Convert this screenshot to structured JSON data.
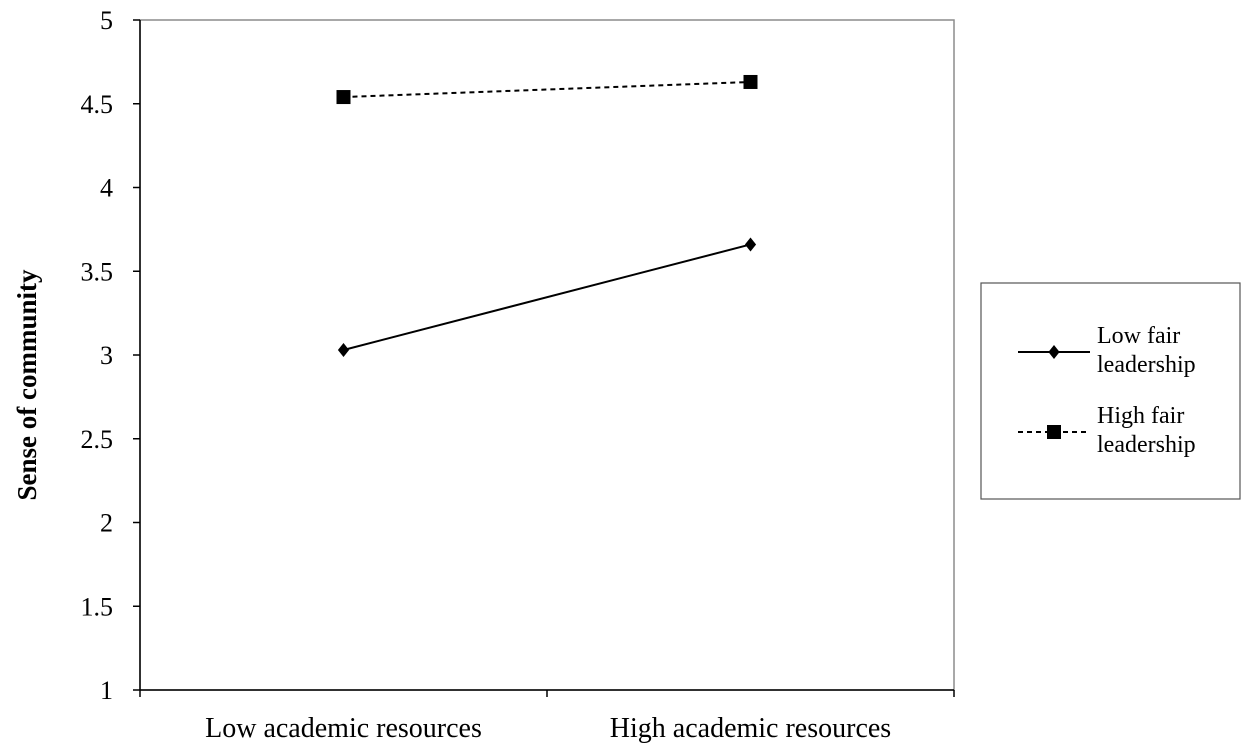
{
  "chart_data": {
    "type": "line",
    "title": "",
    "xlabel": "",
    "ylabel": "Sense of community",
    "categories": [
      "Low academic resources",
      "High academic resources"
    ],
    "ylim": [
      1,
      5
    ],
    "yticks": [
      "1",
      "1.5",
      "2",
      "2.5",
      "3",
      "3.5",
      "4",
      "4.5",
      "5"
    ],
    "grid": false,
    "legend_position": "right",
    "series": [
      {
        "name": "Low fair leadership",
        "legend_lines": [
          "Low fair",
          "leadership"
        ],
        "values": [
          3.03,
          3.66
        ],
        "marker": "diamond",
        "line": "solid",
        "color": "#000000"
      },
      {
        "name": "High fair leadership",
        "legend_lines": [
          "High fair",
          "leadership"
        ],
        "values": [
          4.54,
          4.63
        ],
        "marker": "square",
        "line": "dashed",
        "color": "#000000"
      }
    ]
  }
}
